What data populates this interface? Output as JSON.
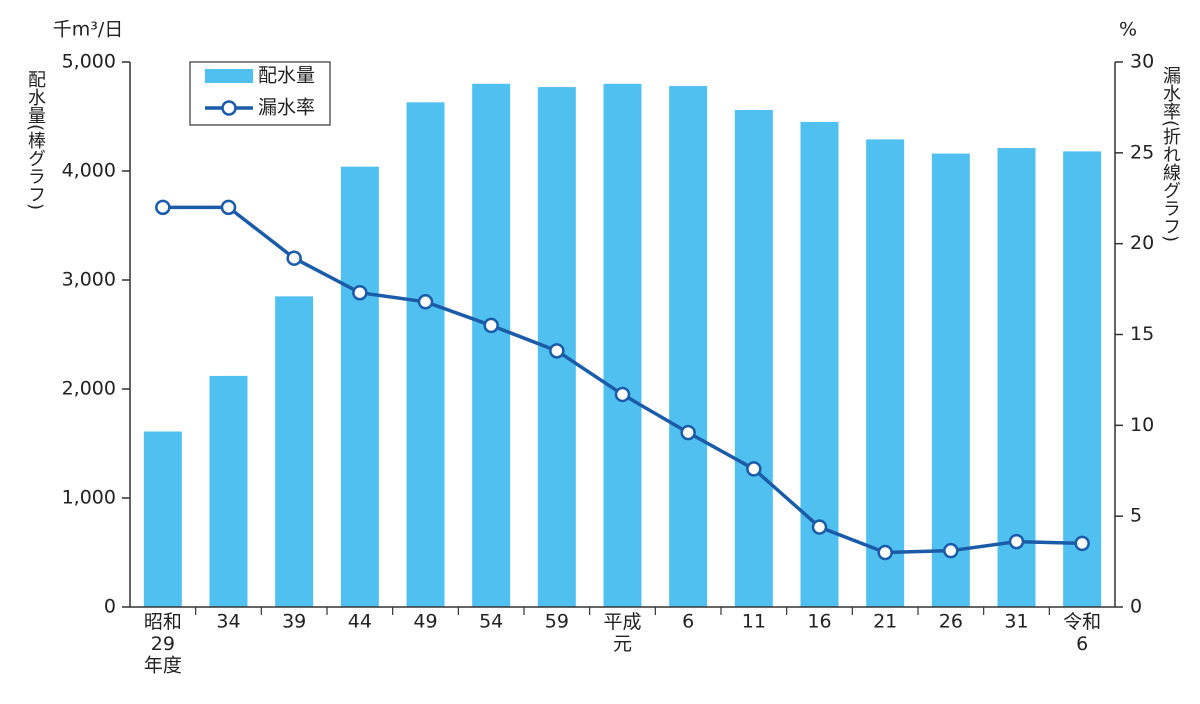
{
  "chart_data": {
    "type": "bar",
    "y_unit": "千m³/日",
    "ylabel": "配水量(棒グラフ)",
    "y2_unit": "%",
    "y2label": "漏水率(折れ線グラフ)",
    "categories": [
      "昭和\n29\n年度",
      "34",
      "39",
      "44",
      "49",
      "54",
      "59",
      "平成\n元",
      "6",
      "11",
      "16",
      "21",
      "26",
      "31",
      "令和\n6"
    ],
    "series": [
      {
        "name": "配水量",
        "type": "bar",
        "color": "#50c0f0",
        "values": [
          1610,
          2120,
          2850,
          4040,
          4630,
          4800,
          4770,
          4800,
          4780,
          4560,
          4450,
          4290,
          4160,
          4210,
          4180
        ]
      },
      {
        "name": "漏水率",
        "type": "line",
        "axis": "y2",
        "color": "#1a5ca8",
        "values": [
          22.0,
          22.0,
          19.2,
          17.3,
          16.8,
          15.5,
          14.1,
          11.7,
          9.6,
          7.6,
          4.4,
          3.0,
          3.1,
          3.6,
          3.5
        ]
      }
    ],
    "ylim": [
      0,
      5000
    ],
    "yticks": [
      0,
      {
        "value": 1000,
        "label": "1,000"
      },
      {
        "value": 2000,
        "label": "2,000"
      },
      {
        "value": 3000,
        "label": "3,000"
      },
      {
        "value": 4000,
        "label": "4,000"
      },
      {
        "value": 5000,
        "label": "5,000"
      }
    ],
    "y2lim": [
      0,
      30
    ],
    "y2ticks": [
      0,
      5,
      10,
      15,
      20,
      25,
      30
    ],
    "legend": "upper-left"
  }
}
